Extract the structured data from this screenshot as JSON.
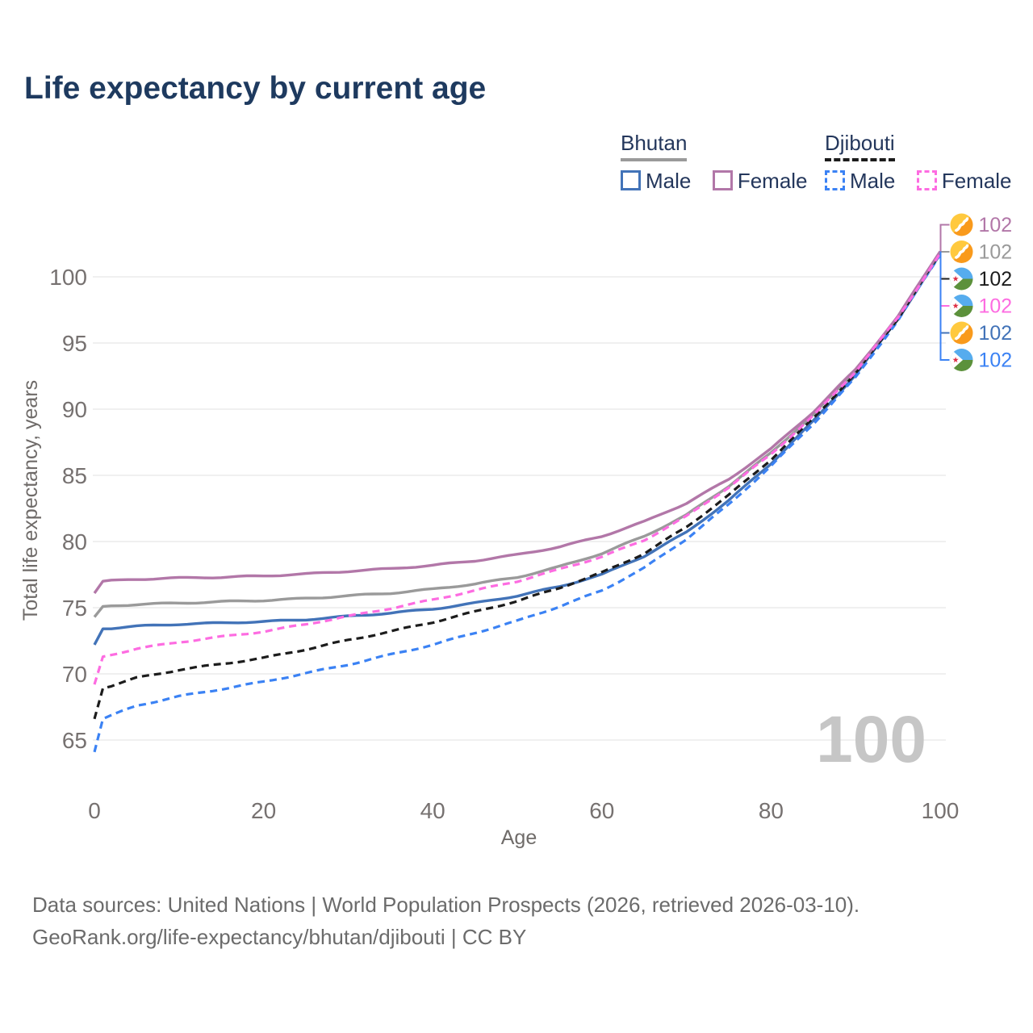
{
  "title": "Life expectancy by current age",
  "watermark": "100",
  "legend": {
    "groups": [
      {
        "name": "Bhutan",
        "underline": "solid",
        "underline_color": "#9a9a9a",
        "items": [
          {
            "label": "Male",
            "color": "#4273b8",
            "dash": false
          },
          {
            "label": "Female",
            "color": "#b277a8",
            "dash": false
          }
        ]
      },
      {
        "name": "Djibouti",
        "underline": "dashed",
        "underline_color": "#1c1c1c",
        "items": [
          {
            "label": "Male",
            "color": "#3b82f4",
            "dash": true
          },
          {
            "label": "Female",
            "color": "#fd6ce1",
            "dash": true
          }
        ]
      }
    ]
  },
  "chart_data": {
    "type": "line",
    "title": "Life expectancy by current age",
    "xlabel": "Age",
    "ylabel": "Total life expectancy, years",
    "xlim": [
      0,
      100
    ],
    "ylim": [
      63,
      103
    ],
    "x_ticks": [
      0,
      20,
      40,
      60,
      80,
      100
    ],
    "y_ticks": [
      65,
      70,
      75,
      80,
      85,
      90,
      95,
      100
    ],
    "grid": "horizontal",
    "legend_position": "top-right",
    "x": [
      0,
      1,
      5,
      10,
      15,
      20,
      25,
      30,
      35,
      40,
      45,
      50,
      55,
      60,
      65,
      70,
      75,
      80,
      85,
      90,
      95,
      100
    ],
    "series": [
      {
        "name": "Bhutan Male",
        "country": "Bhutan",
        "sex": "Male",
        "color": "#4273b8",
        "style": "solid",
        "flag": "bhutan",
        "values": [
          72.2,
          73.4,
          73.6,
          73.75,
          73.85,
          73.95,
          74.1,
          74.35,
          74.6,
          74.9,
          75.35,
          75.9,
          76.6,
          77.5,
          78.9,
          80.7,
          83.1,
          85.9,
          89.1,
          92.6,
          96.8,
          101.72
        ]
      },
      {
        "name": "Djibouti Male",
        "country": "Djibouti",
        "sex": "Male",
        "color": "#3b82f4",
        "style": "dashed",
        "flag": "djibouti",
        "values": [
          64.1,
          66.6,
          67.6,
          68.3,
          68.85,
          69.4,
          70.05,
          70.7,
          71.45,
          72.2,
          73.1,
          74.0,
          75.1,
          76.3,
          78.0,
          80.2,
          82.8,
          85.7,
          88.9,
          92.4,
          96.7,
          101.67
        ]
      },
      {
        "name": "Bhutan",
        "country": "Bhutan",
        "sex": "Total",
        "color": "#9a9a9a",
        "style": "solid",
        "flag": "bhutan",
        "values": [
          74.3,
          75.1,
          75.25,
          75.35,
          75.45,
          75.55,
          75.7,
          75.9,
          76.1,
          76.4,
          76.8,
          77.3,
          78.1,
          79.1,
          80.4,
          82.0,
          84.2,
          86.7,
          89.6,
          92.9,
          96.9,
          101.87
        ]
      },
      {
        "name": "Djibouti",
        "country": "Djibouti",
        "sex": "Total",
        "color": "#1c1c1c",
        "style": "dashed",
        "flag": "djibouti",
        "values": [
          66.6,
          68.9,
          69.7,
          70.3,
          70.75,
          71.2,
          71.85,
          72.55,
          73.2,
          73.9,
          74.7,
          75.5,
          76.5,
          77.65,
          79.1,
          81.1,
          83.5,
          86.2,
          89.3,
          92.7,
          96.85,
          101.82
        ]
      },
      {
        "name": "Bhutan Female",
        "country": "Bhutan",
        "sex": "Female",
        "color": "#b277a8",
        "style": "solid",
        "flag": "bhutan",
        "values": [
          76.1,
          77.0,
          77.15,
          77.25,
          77.3,
          77.4,
          77.55,
          77.75,
          77.95,
          78.2,
          78.55,
          79.0,
          79.6,
          80.4,
          81.5,
          82.9,
          84.7,
          87.0,
          89.8,
          93.0,
          97.0,
          101.92
        ]
      },
      {
        "name": "Djibouti Female",
        "country": "Djibouti",
        "sex": "Female",
        "color": "#fd6ce1",
        "style": "dashed",
        "flag": "djibouti",
        "values": [
          69.2,
          71.3,
          71.9,
          72.4,
          72.8,
          73.2,
          73.75,
          74.35,
          74.95,
          75.6,
          76.3,
          77.0,
          77.9,
          78.85,
          80.1,
          81.9,
          84.1,
          86.6,
          89.5,
          92.85,
          96.9,
          101.77
        ]
      }
    ],
    "endpoints": [
      {
        "label": "102",
        "flag": "bhutan",
        "color": "#b277a8",
        "series": "Bhutan Female"
      },
      {
        "label": "102",
        "flag": "bhutan",
        "color": "#9a9a9a",
        "series": "Bhutan"
      },
      {
        "label": "102",
        "flag": "djibouti",
        "color": "#1c1c1c",
        "series": "Djibouti"
      },
      {
        "label": "102",
        "flag": "djibouti",
        "color": "#fd6ce1",
        "series": "Djibouti Female"
      },
      {
        "label": "102",
        "flag": "bhutan",
        "color": "#4273b8",
        "series": "Bhutan Male"
      },
      {
        "label": "102",
        "flag": "djibouti",
        "color": "#3b82f4",
        "series": "Djibouti Male"
      }
    ]
  },
  "footer": {
    "line1": "Data sources: United Nations | World Population Prospects (2026, retrieved 2026-03-10).",
    "line2": "GeoRank.org/life-expectancy/bhutan/djibouti | CC BY"
  }
}
